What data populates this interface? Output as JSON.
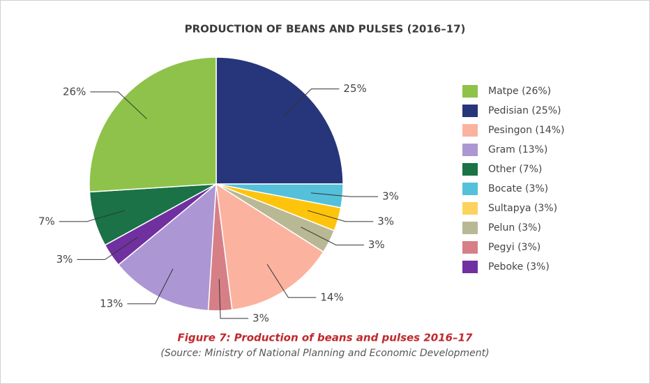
{
  "chart_data": {
    "type": "pie",
    "title": "PRODUCTION OF BEANS AND PULSES (2016–17)",
    "caption": "Figure 7: Production of beans and pulses 2016–17",
    "source": "(Source: Ministry of National Planning and Economic Development)",
    "values": [
      25,
      3,
      3,
      3,
      14,
      3,
      13,
      3,
      7,
      26
    ],
    "value_labels": [
      "25%",
      "3%",
      "3%",
      "3%",
      "14%",
      "3%",
      "13%",
      "3%",
      "7%",
      "26%"
    ],
    "colors": [
      "#27357a",
      "#55c0da",
      "#fec40c",
      "#b9b894",
      "#fbb39f",
      "#d77f86",
      "#ac97d4",
      "#7030a0",
      "#1a7246",
      "#8fc24a"
    ],
    "legend": [
      {
        "label": "Matpe (26%)",
        "color": "#8fc24a"
      },
      {
        "label": "Pedisian (25%)",
        "color": "#27357a"
      },
      {
        "label": "Pesingon (14%)",
        "color": "#fbb39f"
      },
      {
        "label": "Gram (13%)",
        "color": "#ac97d4"
      },
      {
        "label": "Other (7%)",
        "color": "#1a7246"
      },
      {
        "label": "Bocate (3%)",
        "color": "#55c0da"
      },
      {
        "label": "Sultapya (3%)",
        "color": "#fed25f"
      },
      {
        "label": "Pelun (3%)",
        "color": "#b9b894"
      },
      {
        "label": "Pegyi (3%)",
        "color": "#d77f86"
      },
      {
        "label": "Peboke (3%)",
        "color": "#7030a0"
      }
    ]
  }
}
